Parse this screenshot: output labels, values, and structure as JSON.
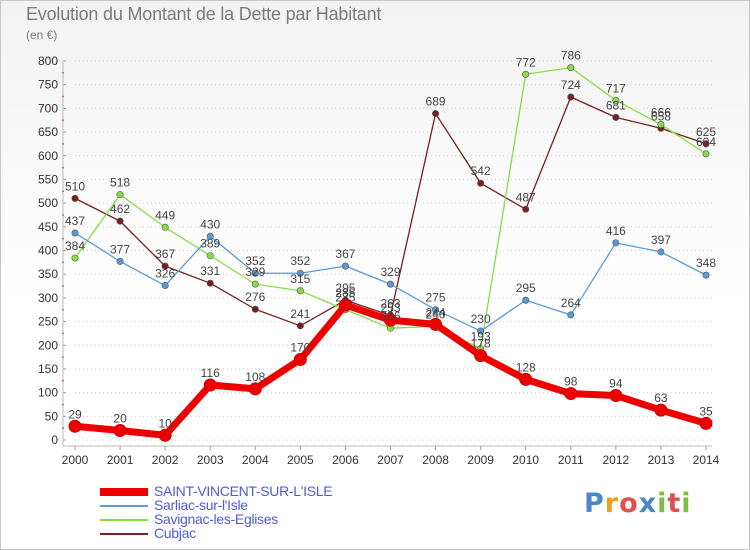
{
  "title": "Evolution du Montant de la Dette par Habitant",
  "subtitle": "(en €)",
  "logo": {
    "letters": [
      "P",
      "r",
      "o",
      "x",
      "i",
      "t",
      "i"
    ],
    "colors": [
      "#4a86c8",
      "#f0a020",
      "#e05050",
      "#4a86c8",
      "#7cbf3c",
      "#e05050",
      "#7cbf3c"
    ]
  },
  "chart_data": {
    "type": "line",
    "x": [
      2000,
      2001,
      2002,
      2003,
      2004,
      2005,
      2006,
      2007,
      2008,
      2009,
      2010,
      2011,
      2012,
      2013,
      2014
    ],
    "ylim": [
      0,
      800
    ],
    "yticks": [
      0,
      50,
      100,
      150,
      200,
      250,
      300,
      350,
      400,
      450,
      500,
      550,
      600,
      650,
      700,
      750,
      800
    ],
    "grid": "horizontal dotted",
    "legend": "bottom-left",
    "series": [
      {
        "name": "SAINT-VINCENT-SUR-L'ISLE",
        "color": "#ee0000",
        "values": [
          29,
          20,
          10,
          116,
          108,
          170,
          285,
          253,
          244,
          178,
          128,
          98,
          94,
          63,
          35
        ]
      },
      {
        "name": "Sarliac-sur-l'Isle",
        "color": "#5a9ad8",
        "values": [
          437,
          377,
          326,
          430,
          352,
          352,
          367,
          329,
          275,
          230,
          295,
          264,
          416,
          397,
          348
        ]
      },
      {
        "name": "Savignac-les-Eglises",
        "color": "#88dd44",
        "values": [
          384,
          518,
          449,
          389,
          329,
          315,
          275,
          236,
          240,
          193,
          772,
          786,
          717,
          666,
          604
        ]
      },
      {
        "name": "Cubjac",
        "color": "#7a1e1e",
        "values": [
          510,
          462,
          367,
          331,
          276,
          241,
          295,
          263,
          689,
          542,
          487,
          724,
          681,
          658,
          625
        ]
      }
    ]
  }
}
